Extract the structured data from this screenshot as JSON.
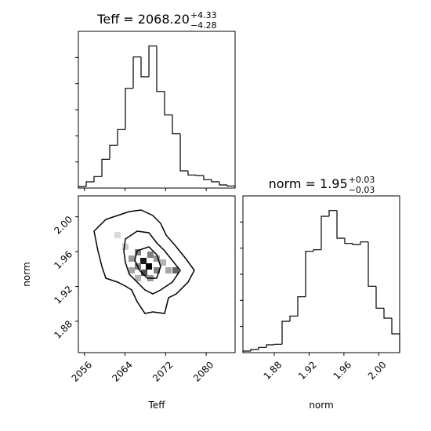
{
  "chart_data": [
    {
      "type": "histogram",
      "title": "Teff = 2068.20",
      "title_sup": "+4.33",
      "title_sub": "−4.28",
      "color": "#000000",
      "bins": [
        2054.8,
        2056.35,
        2057.89,
        2059.44,
        2060.98,
        2062.53,
        2064.07,
        2065.62,
        2067.16,
        2068.71,
        2070.25,
        2071.8,
        2073.34,
        2074.89,
        2076.43,
        2077.98,
        2079.52,
        2081.07,
        2082.61,
        2084.16,
        2085.7
      ],
      "values": [
        3,
        12,
        22,
        55,
        82,
        112,
        191,
        251,
        213,
        272,
        185,
        140,
        104,
        33,
        25,
        24,
        16,
        12,
        6,
        4
      ],
      "xlim": [
        2054.8,
        2085.7
      ],
      "xticks": [
        2056,
        2064,
        2072,
        2080
      ],
      "ylim": [
        0,
        300
      ],
      "yticks": [
        50,
        100,
        150,
        200,
        250
      ]
    },
    {
      "type": "contour",
      "xlabel": "Teff",
      "ylabel": "norm",
      "color": "#000000",
      "xlim": [
        2054.8,
        2085.7
      ],
      "xticks": [
        2056,
        2064,
        2072,
        2080
      ],
      "ylim": [
        1.844,
        2.024
      ],
      "yticks": [
        1.88,
        1.92,
        1.96,
        {
          "value": 2,
          "label": "2.00"
        }
      ],
      "cells": {
        "x": [
          2067.62,
          2068.71,
          2067.78,
          2066.54,
          2069.01,
          2070.25,
          2066.54,
          2065.31,
          2065.31,
          2070.25,
          2071.49,
          2069.01,
          2066.54,
          2064.07,
          2062.53,
          2072.57,
          2073.96
        ],
        "y": [
          1.9493,
          1.943,
          1.9358,
          1.9592,
          1.9565,
          1.952,
          1.943,
          1.952,
          1.9385,
          1.9385,
          1.9475,
          1.9295,
          1.9295,
          1.9655,
          1.979,
          1.9385,
          1.9385
        ],
        "values": [
          0.9,
          1.0,
          0.7,
          0.5,
          0.5,
          0.4,
          0.5,
          0.4,
          0.35,
          0.5,
          0.3,
          0.4,
          0.3,
          0.2,
          0.15,
          0.35,
          0.6
        ]
      },
      "contours": [
        {
          "x": [
            2057.89,
            2060.21,
            2062.53,
            2064.84,
            2067.16,
            2069.48,
            2071.02,
            2072.1,
            2074.11,
            2075.97,
            2077.67,
            2076.43,
            2074.11,
            2072.57,
            2071.8,
            2069.48,
            2067.93,
            2066.39,
            2065.31,
            2064.07,
            2062.53,
            2060.21,
            2059.44,
            2058.66
          ],
          "y": [
            1.9835,
            1.997,
            2.0015,
            2.006,
            2.0078,
            2.0015,
            1.9925,
            1.979,
            1.9655,
            1.952,
            1.9385,
            1.925,
            1.9115,
            1.907,
            1.889,
            1.8908,
            1.889,
            1.9025,
            1.916,
            1.9205,
            1.925,
            1.9295,
            1.943,
            1.961
          ]
        },
        {
          "x": [
            2064.07,
            2066.39,
            2068.71,
            2070.25,
            2071.8,
            2073.65,
            2074.89,
            2073.34,
            2071.02,
            2069.48,
            2067.93,
            2066.39,
            2064.84,
            2064.07,
            2063.76
          ],
          "y": [
            1.9745,
            1.9835,
            1.9817,
            1.97,
            1.961,
            1.9475,
            1.9385,
            1.925,
            1.916,
            1.9115,
            1.916,
            1.925,
            1.934,
            1.9475,
            1.961
          ]
        },
        {
          "x": [
            2066.39,
            2068.71,
            2070.25,
            2071.02,
            2070.25,
            2068.4,
            2066.85,
            2065.92
          ],
          "y": [
            1.961,
            1.9655,
            1.9565,
            1.943,
            1.9295,
            1.9295,
            1.9385,
            1.9502
          ]
        }
      ]
    },
    {
      "type": "histogram",
      "title": "norm = 1.95",
      "title_sup": "+0.03",
      "title_sub": "−0.03",
      "xlabel": "norm",
      "color": "#000000",
      "bins": [
        1.844,
        1.853,
        1.862,
        1.871,
        1.88,
        1.889,
        1.898,
        1.907,
        1.916,
        1.925,
        1.934,
        1.943,
        1.952,
        1.961,
        1.97,
        1.979,
        1.988,
        1.997,
        2.006,
        2.015,
        2.024
      ],
      "values": [
        3,
        6,
        10,
        15,
        16,
        60,
        70,
        107,
        194,
        197,
        261,
        272,
        219,
        209,
        207,
        212,
        127,
        85,
        66,
        36
      ],
      "xlim": [
        1.844,
        2.024
      ],
      "xticks": [
        1.88,
        1.92,
        1.96,
        {
          "value": 2,
          "label": "2.00"
        }
      ],
      "ylim": [
        0,
        300
      ],
      "yticks": [
        50,
        100,
        150,
        200,
        250
      ]
    }
  ]
}
